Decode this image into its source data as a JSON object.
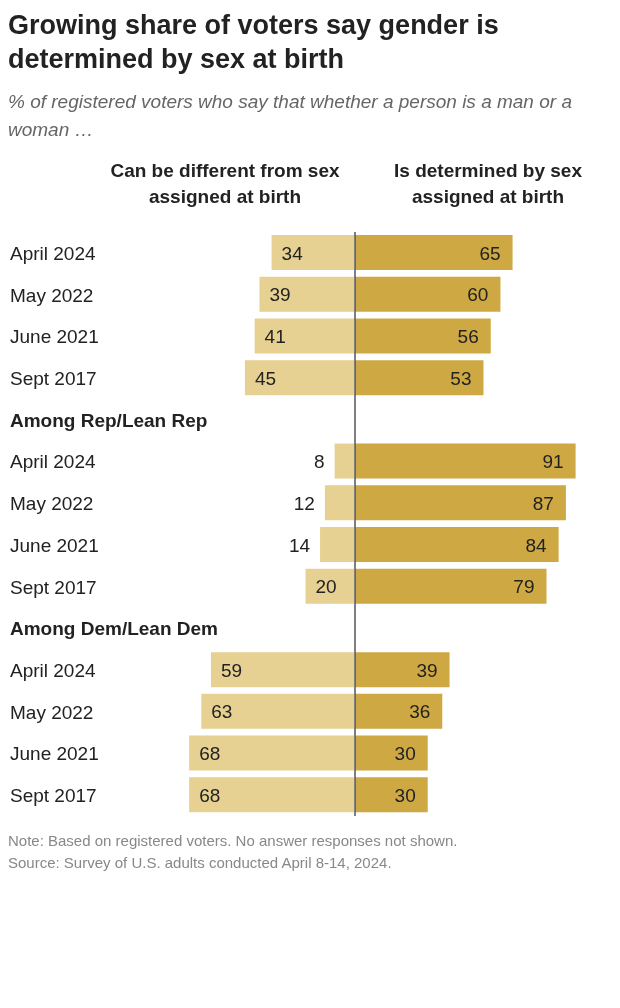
{
  "chart_data": [
    {
      "type": "bar",
      "orientation": "horizontal",
      "title": "Growing share of voters say gender is determined by sex at birth",
      "subtitle": "% of registered voters who say that whether a person is a man or a woman …",
      "xlabel": "Can be different from sex assigned at birth",
      "categories": [
        "April 2024",
        "May 2022",
        "June 2021",
        "Sept 2017",
        "Among Rep/Lean Rep",
        "April 2024",
        "May 2022",
        "June 2021",
        "Sept 2017",
        "Among Dem/Lean Dem",
        "April 2024",
        "May 2022",
        "June 2021",
        "Sept 2017"
      ],
      "series": [
        {
          "color": "#e6d192",
          "values": [
            34,
            39,
            41,
            45,
            null,
            8,
            12,
            14,
            20,
            null,
            59,
            63,
            68,
            68
          ]
        }
      ],
      "data_labels": true,
      "tick_labels": "y"
    },
    {
      "type": "bar",
      "orientation": "horizontal",
      "xlabel": "Is determined by sex assigned at birth",
      "series": [
        {
          "color": "#cda843",
          "values": [
            65,
            60,
            56,
            53,
            null,
            91,
            87,
            84,
            79,
            null,
            39,
            36,
            30,
            30
          ]
        }
      ],
      "data_labels": true,
      "tick_labels": false,
      "annotations": [
        "Note: Based on registered voters. No answer responses not shown.",
        "Source: Survey of U.S. adults conducted April 8-14, 2024."
      ]
    }
  ]
}
